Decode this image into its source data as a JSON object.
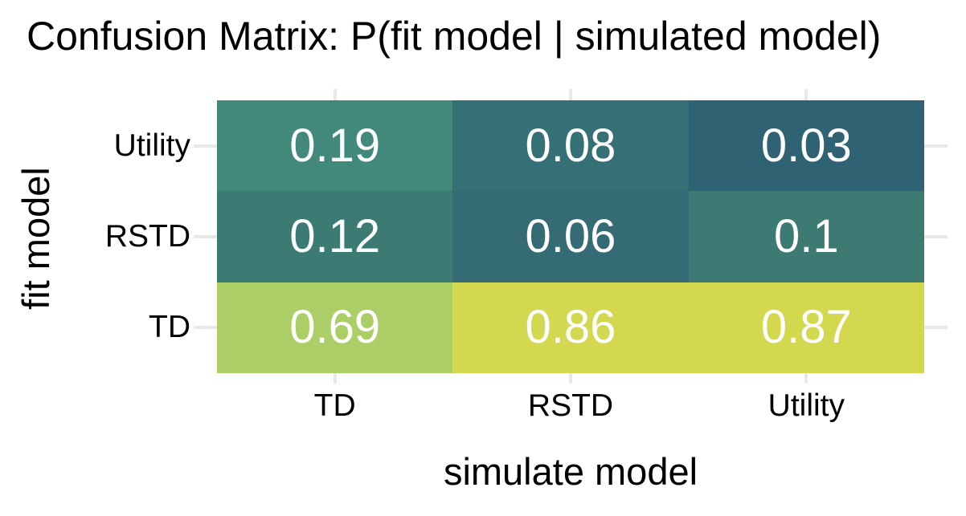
{
  "title": "Confusion Matrix: P(fit model | simulated model)",
  "chart_data": {
    "type": "heatmap",
    "title": "Confusion Matrix: P(fit model | simulated model)",
    "xlabel": "simulate model",
    "ylabel": "fit model",
    "x_categories": [
      "TD",
      "RSTD",
      "Utility"
    ],
    "y_categories": [
      "Utility",
      "RSTD",
      "TD"
    ],
    "values": [
      [
        0.19,
        0.08,
        0.03
      ],
      [
        0.12,
        0.06,
        0.1
      ],
      [
        0.69,
        0.86,
        0.87
      ]
    ],
    "value_labels": [
      [
        "0.19",
        "0.08",
        "0.03"
      ],
      [
        "0.12",
        "0.06",
        "0.1"
      ],
      [
        "0.69",
        "0.86",
        "0.87"
      ]
    ],
    "cell_colors": [
      [
        "#43897b",
        "#357076",
        "#2f6374"
      ],
      [
        "#3b7b74",
        "#346b75",
        "#3d7a74"
      ],
      [
        "#abce67",
        "#d3d850",
        "#d4d84f"
      ]
    ],
    "colors": {
      "cell_text": "#ffffff",
      "axis_text": "#000000",
      "title_text": "#000000",
      "gridline": "#e8e8e8",
      "background": "#ffffff"
    },
    "legend": "none",
    "grid": "major gridline stubs outside tile area"
  }
}
